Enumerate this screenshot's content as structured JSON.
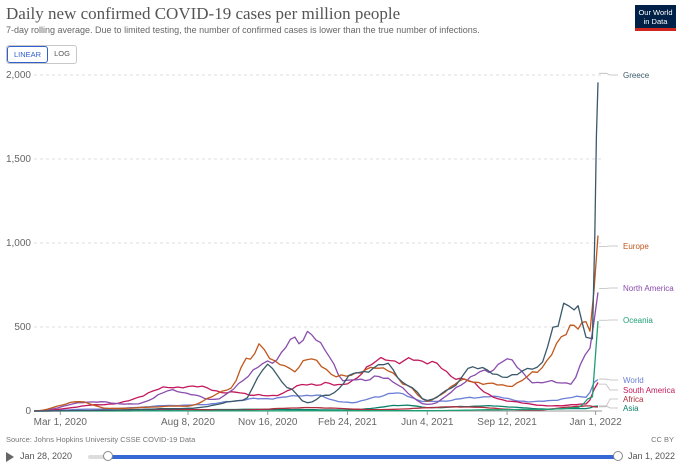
{
  "header": {
    "title": "Daily new confirmed COVID-19 cases per million people",
    "subtitle": "7-day rolling average. Due to limited testing, the number of confirmed cases is lower than the true number of infections.",
    "logo_line1": "Our World",
    "logo_line2": "in Data"
  },
  "scale_toggle": {
    "linear_label": "LINEAR",
    "log_label": "LOG",
    "selected": "LINEAR"
  },
  "footer": {
    "source": "Source: Johns Hopkins University CSSE COVID-19 Data",
    "license": "CC BY"
  },
  "timeline": {
    "start_label": "Jan 28, 2020",
    "end_label": "Jan 1, 2022"
  },
  "chart_data": {
    "type": "line",
    "x_type": "date",
    "ylim": [
      0,
      2000
    ],
    "yticks": [
      0,
      500,
      1000,
      1500,
      2000
    ],
    "ytick_labels": [
      "0",
      "500",
      "1,000",
      "1,500",
      "2,000"
    ],
    "xlim": [
      "2020-01-28",
      "2022-01-04"
    ],
    "xticks": [
      "2020-03-01",
      "2020-08-08",
      "2020-11-16",
      "2021-02-24",
      "2021-06-04",
      "2021-09-12",
      "2022-01-01"
    ],
    "xtick_labels": [
      "Mar 1, 2020",
      "Aug 8, 2020",
      "Nov 16, 2020",
      "Feb 24, 2021",
      "Jun 4, 2021",
      "Sep 12, 2021",
      "Jan 1, 2022"
    ],
    "grid": true,
    "series": [
      {
        "name": "Greece",
        "color": "#3a5a6b",
        "points": [
          [
            "2020-01-28",
            0
          ],
          [
            "2020-04-01",
            3
          ],
          [
            "2020-08-08",
            15
          ],
          [
            "2020-10-15",
            60
          ],
          [
            "2020-11-16",
            280
          ],
          [
            "2020-12-10",
            140
          ],
          [
            "2021-01-05",
            50
          ],
          [
            "2021-02-01",
            100
          ],
          [
            "2021-03-10",
            230
          ],
          [
            "2021-04-10",
            280
          ],
          [
            "2021-05-10",
            160
          ],
          [
            "2021-06-04",
            60
          ],
          [
            "2021-07-10",
            150
          ],
          [
            "2021-07-25",
            260
          ],
          [
            "2021-09-12",
            210
          ],
          [
            "2021-10-20",
            250
          ],
          [
            "2021-11-15",
            540
          ],
          [
            "2021-11-22",
            655
          ],
          [
            "2021-12-05",
            640
          ],
          [
            "2021-12-20",
            470
          ],
          [
            "2021-12-28",
            420
          ],
          [
            "2021-12-31",
            1000
          ],
          [
            "2022-01-02",
            1700
          ],
          [
            "2022-01-04",
            2010
          ]
        ]
      },
      {
        "name": "Europe",
        "color": "#c0571d",
        "points": [
          [
            "2020-01-28",
            0
          ],
          [
            "2020-03-25",
            55
          ],
          [
            "2020-05-01",
            15
          ],
          [
            "2020-08-08",
            30
          ],
          [
            "2020-10-01",
            130
          ],
          [
            "2020-10-20",
            300
          ],
          [
            "2020-11-05",
            380
          ],
          [
            "2020-11-25",
            280
          ],
          [
            "2020-12-20",
            250
          ],
          [
            "2021-01-10",
            320
          ],
          [
            "2021-02-10",
            200
          ],
          [
            "2021-03-25",
            250
          ],
          [
            "2021-04-10",
            260
          ],
          [
            "2021-05-10",
            150
          ],
          [
            "2021-06-04",
            60
          ],
          [
            "2021-07-20",
            180
          ],
          [
            "2021-09-12",
            150
          ],
          [
            "2021-10-20",
            230
          ],
          [
            "2021-11-25",
            470
          ],
          [
            "2021-12-10",
            520
          ],
          [
            "2021-12-25",
            500
          ],
          [
            "2022-01-04",
            980
          ]
        ]
      },
      {
        "name": "North America",
        "color": "#8a4dad",
        "points": [
          [
            "2020-01-28",
            0
          ],
          [
            "2020-04-10",
            55
          ],
          [
            "2020-06-01",
            40
          ],
          [
            "2020-07-20",
            120
          ],
          [
            "2020-09-10",
            70
          ],
          [
            "2020-11-16",
            280
          ],
          [
            "2020-12-20",
            420
          ],
          [
            "2021-01-10",
            450
          ],
          [
            "2021-02-24",
            180
          ],
          [
            "2021-04-10",
            200
          ],
          [
            "2021-06-04",
            40
          ],
          [
            "2021-08-15",
            230
          ],
          [
            "2021-09-12",
            300
          ],
          [
            "2021-10-20",
            170
          ],
          [
            "2021-12-01",
            170
          ],
          [
            "2021-12-25",
            360
          ],
          [
            "2022-01-04",
            730
          ]
        ]
      },
      {
        "name": "Oceania",
        "color": "#1f9e75",
        "points": [
          [
            "2020-01-28",
            0
          ],
          [
            "2021-06-04",
            2
          ],
          [
            "2021-09-12",
            8
          ],
          [
            "2021-11-01",
            10
          ],
          [
            "2021-12-10",
            20
          ],
          [
            "2021-12-28",
            90
          ],
          [
            "2022-01-04",
            540
          ]
        ]
      },
      {
        "name": "World",
        "color": "#6c7fd6",
        "points": [
          [
            "2020-01-28",
            0
          ],
          [
            "2020-04-10",
            11
          ],
          [
            "2020-08-08",
            35
          ],
          [
            "2020-11-16",
            75
          ],
          [
            "2021-01-10",
            95
          ],
          [
            "2021-02-24",
            50
          ],
          [
            "2021-04-28",
            105
          ],
          [
            "2021-06-04",
            55
          ],
          [
            "2021-08-20",
            85
          ],
          [
            "2021-10-15",
            55
          ],
          [
            "2021-12-20",
            85
          ],
          [
            "2022-01-04",
            190
          ]
        ]
      },
      {
        "name": "South America",
        "color": "#c2185b",
        "points": [
          [
            "2020-01-28",
            0
          ],
          [
            "2020-05-01",
            40
          ],
          [
            "2020-07-20",
            140
          ],
          [
            "2020-08-08",
            150
          ],
          [
            "2020-10-01",
            110
          ],
          [
            "2020-11-16",
            90
          ],
          [
            "2021-01-10",
            160
          ],
          [
            "2021-02-24",
            160
          ],
          [
            "2021-04-01",
            300
          ],
          [
            "2021-06-04",
            300
          ],
          [
            "2021-07-10",
            200
          ],
          [
            "2021-09-12",
            60
          ],
          [
            "2021-11-01",
            30
          ],
          [
            "2021-12-20",
            40
          ],
          [
            "2022-01-04",
            160
          ]
        ]
      },
      {
        "name": "Africa",
        "color": "#b22c3f",
        "points": [
          [
            "2020-01-28",
            0
          ],
          [
            "2020-07-20",
            10
          ],
          [
            "2020-10-01",
            5
          ],
          [
            "2021-01-10",
            20
          ],
          [
            "2021-04-01",
            8
          ],
          [
            "2021-07-15",
            25
          ],
          [
            "2021-10-15",
            5
          ],
          [
            "2021-12-20",
            30
          ],
          [
            "2022-01-04",
            25
          ]
        ]
      },
      {
        "name": "Asia",
        "color": "#0b7f6a",
        "points": [
          [
            "2020-01-28",
            0
          ],
          [
            "2020-08-08",
            8
          ],
          [
            "2020-11-16",
            10
          ],
          [
            "2021-02-24",
            6
          ],
          [
            "2021-05-10",
            35
          ],
          [
            "2021-06-04",
            20
          ],
          [
            "2021-08-20",
            30
          ],
          [
            "2021-11-01",
            12
          ],
          [
            "2021-12-20",
            15
          ],
          [
            "2022-01-04",
            30
          ]
        ]
      }
    ]
  }
}
